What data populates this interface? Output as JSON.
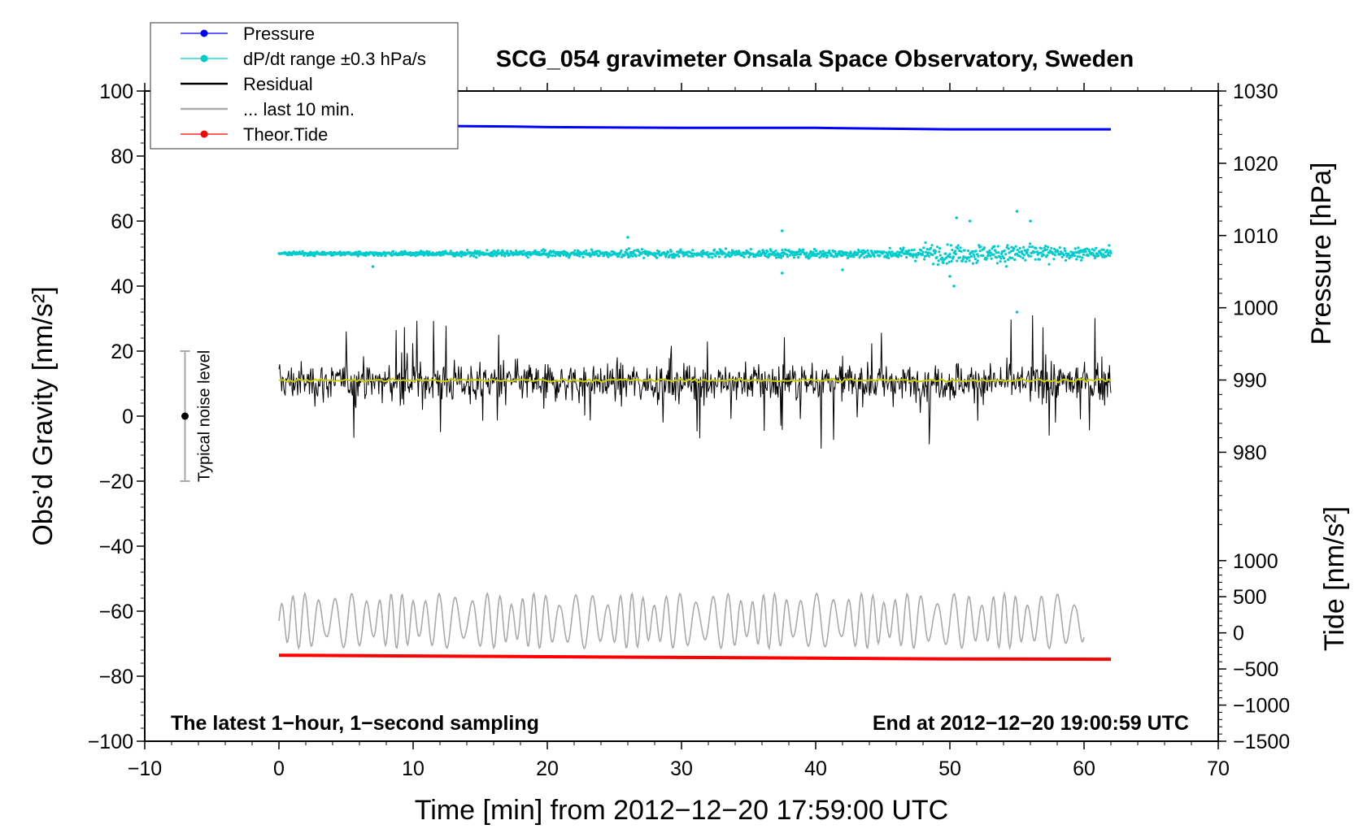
{
  "chart_data": {
    "type": "line",
    "title": "SCG_054 gravimeter Onsala Space Observatory, Sweden",
    "xlabel": "Time [min] from 2012−12−20 17:59:00 UTC",
    "ylabel": "Obs’d Gravity [nm/s²]",
    "ylabel_right_pressure": "Pressure [hPa]",
    "ylabel_right_tide": "Tide [nm/s²]",
    "xlim": [
      -10,
      70
    ],
    "ylim": [
      -100,
      100
    ],
    "pressure_lim": [
      970,
      1030
    ],
    "tide_lim": [
      -1500,
      1500
    ],
    "x_ticks": [
      -10,
      0,
      10,
      20,
      30,
      40,
      50,
      60,
      70
    ],
    "x_tick_labels": [
      "−10",
      "0",
      "10",
      "20",
      "30",
      "40",
      "50",
      "60",
      "70"
    ],
    "y_ticks": [
      -100,
      -80,
      -60,
      -40,
      -20,
      0,
      20,
      40,
      60,
      80,
      100
    ],
    "y_tick_labels": [
      "−100",
      "−80",
      "−60",
      "−40",
      "−20",
      "0",
      "20",
      "40",
      "60",
      "80",
      "100"
    ],
    "pressure_ticks": [
      980,
      990,
      1000,
      1010,
      1020,
      1030
    ],
    "pressure_tick_labels": [
      "980",
      "990",
      "1000",
      "1010",
      "1020",
      "1030"
    ],
    "tide_ticks": [
      -1500,
      -1000,
      -500,
      0,
      500,
      1000
    ],
    "tide_tick_labels": [
      "−1500",
      "−1000",
      "−500",
      "0",
      "500",
      "1000"
    ],
    "annotation_left": "The latest 1−hour, 1−second sampling",
    "annotation_right": "End at 2012−12−20 19:00:59 UTC",
    "noise_level": {
      "label": "Typical noise level",
      "x": -7,
      "center": 0,
      "range": [
        -20,
        20
      ]
    },
    "legend": [
      {
        "label": "Pressure",
        "color": "#0000ff",
        "marker": "dot"
      },
      {
        "label": "dP/dt range ±0.3 hPa/s",
        "color": "#00cccc",
        "marker": "dot"
      },
      {
        "label": "Residual",
        "color": "#000000",
        "marker": "line"
      },
      {
        "label": "... last 10 min.",
        "color": "#aaaaaa",
        "marker": "line"
      },
      {
        "label": "Theor.Tide",
        "color": "#ff0000",
        "marker": "dot"
      }
    ],
    "series": [
      {
        "name": "Pressure",
        "axis": "pressure",
        "color": "#0000ff",
        "x": [
          0,
          10,
          17,
          20,
          30,
          40,
          45,
          50,
          55,
          62
        ],
        "y": [
          1025.2,
          1025.2,
          1025.1,
          1025.0,
          1024.9,
          1024.9,
          1024.8,
          1024.7,
          1024.7,
          1024.7
        ]
      },
      {
        "name": "dP/dt range ±0.3 hPa/s",
        "axis": "gravity",
        "color": "#00cccc",
        "x": [
          0,
          62
        ],
        "center": 50,
        "spread": [
          1.5,
          4
        ],
        "outliers": [
          [
            7,
            46
          ],
          [
            26,
            55
          ],
          [
            37.5,
            44
          ],
          [
            37.5,
            57
          ],
          [
            42,
            45
          ],
          [
            50.5,
            61
          ],
          [
            51.5,
            60
          ],
          [
            50,
            43
          ],
          [
            50.3,
            40
          ],
          [
            55,
            63
          ],
          [
            55,
            32
          ],
          [
            56,
            60
          ]
        ]
      },
      {
        "name": "Residual",
        "axis": "gravity",
        "color": "#000000",
        "x": [
          0,
          62
        ],
        "center": 10.5,
        "spread": [
          -10,
          31
        ]
      },
      {
        "name": "Residual smoothed",
        "axis": "gravity",
        "color": "#cccc00",
        "x": [
          0,
          62
        ],
        "center": 11
      }
    ],
    "last10min": {
      "name": "... last 10 min.",
      "color": "#aaaaaa",
      "x": [
        0,
        60
      ],
      "center": -63,
      "range": [
        -77,
        -44
      ]
    },
    "tide": {
      "name": "Theor.Tide",
      "axis": "tide",
      "color": "#ff0000",
      "x": [
        0,
        10,
        20,
        30,
        40,
        50,
        62
      ],
      "y": [
        -310,
        -320,
        -330,
        -340,
        -350,
        -360,
        -365
      ]
    }
  }
}
